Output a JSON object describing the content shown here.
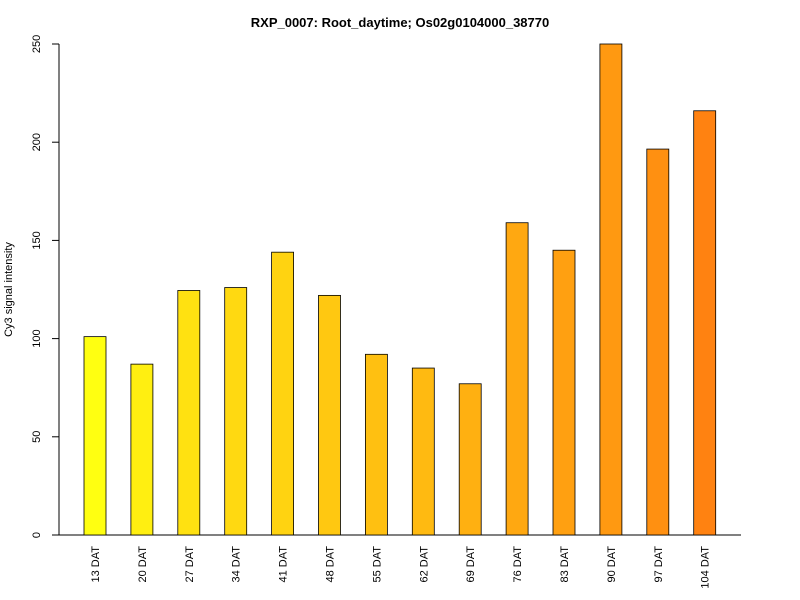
{
  "chart_data": {
    "type": "bar",
    "title": "RXP_0007: Root_daytime; Os02g0104000_38770",
    "xlabel": "",
    "ylabel": "Cy3 signal intensity",
    "ylim": [
      0,
      250
    ],
    "yticks": [
      0,
      50,
      100,
      150,
      200,
      250
    ],
    "grid": false,
    "categories": [
      "13 DAT",
      "20 DAT",
      "27 DAT",
      "34 DAT",
      "41 DAT",
      "48 DAT",
      "55 DAT",
      "62 DAT",
      "69 DAT",
      "76 DAT",
      "83 DAT",
      "90 DAT",
      "97 DAT",
      "104 DAT"
    ],
    "values": [
      101,
      87,
      124.5,
      126,
      144,
      122,
      92,
      85,
      77,
      159,
      145,
      250,
      196.5,
      216
    ],
    "colors": [
      "#FFFF11",
      "#FFEF11",
      "#FFE111",
      "#FFD911",
      "#FFD311",
      "#FFC811",
      "#FFC011",
      "#FFBA11",
      "#FFB011",
      "#FFA811",
      "#FFA011",
      "#FF9911",
      "#FF9011",
      "#FF8211"
    ],
    "bar_outline": "#000000",
    "background": "#ffffff"
  }
}
